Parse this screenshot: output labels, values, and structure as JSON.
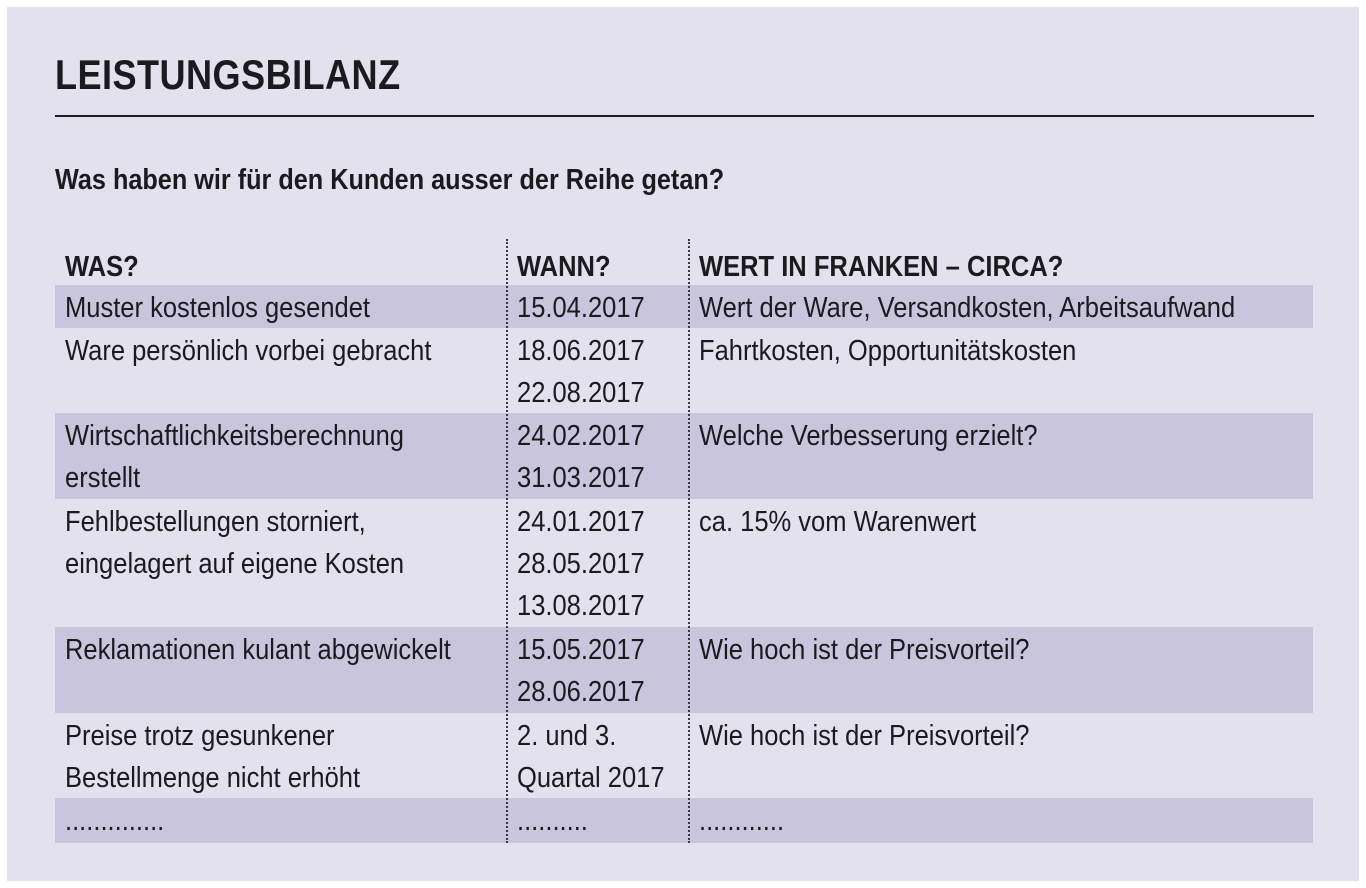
{
  "title": "LEISTUNGSBILANZ",
  "subtitle": "Was haben wir für den Kunden ausser der Reihe getan?",
  "table": {
    "headers": [
      "WAS?",
      "WANN?",
      "WERT IN FRANKEN – CIRCA?"
    ],
    "rows": [
      {
        "was": "Muster kostenlos gesendet",
        "wann": "15.04.2017",
        "wert": "Wert der Ware, Versandkosten, Arbeitsaufwand"
      },
      {
        "was": "Ware persönlich vorbei gebracht",
        "wann": "18.06.2017\n22.08.2017",
        "wert": "Fahrtkosten, Opportunitätskosten"
      },
      {
        "was": "Wirtschaftlichkeitsberechnung\nerstellt",
        "wann": "24.02.2017\n31.03.2017",
        "wert": "Welche Verbesserung erzielt?"
      },
      {
        "was": "Fehlbestellungen storniert,\neingelagert auf eigene Kosten",
        "wann": "24.01.2017\n28.05.2017\n13.08.2017",
        "wert": "ca. 15% vom Warenwert"
      },
      {
        "was": "Reklamationen kulant abgewickelt",
        "wann": "15.05.2017\n28.06.2017",
        "wert": "Wie hoch ist der Preisvorteil?"
      },
      {
        "was": "Preise trotz gesunkener\nBestellmenge nicht erhöht",
        "wann": "2. und 3.\nQuartal 2017",
        "wert": "Wie hoch ist der Preisvorteil?"
      },
      {
        "was": "..............",
        "wann": "..........",
        "wert": "............"
      }
    ]
  },
  "colors": {
    "panel": "#e3e1ee",
    "shaded_row": "#c9c5dd",
    "text": "#1b1b1f"
  }
}
